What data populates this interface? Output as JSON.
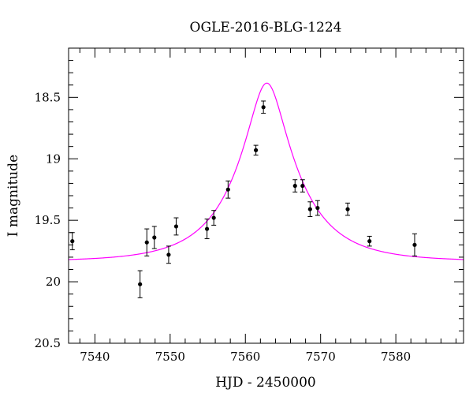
{
  "chart_data": {
    "type": "scatter",
    "title": "OGLE-2016-BLG-1224",
    "xlabel": "HJD - 2450000",
    "ylabel": "I magnitude",
    "xlim": [
      7536.5,
      7589
    ],
    "ylim": [
      20.5,
      18.1
    ],
    "y_inverted": true,
    "x_ticks": [
      7540,
      7550,
      7560,
      7570,
      7580
    ],
    "y_ticks": [
      18.5,
      19,
      19.5,
      20,
      20.5
    ],
    "y_tick_labels": [
      "18.5",
      "19",
      "19.5",
      "20",
      "20.5"
    ],
    "grid": false,
    "series": [
      {
        "kind": "points_with_errorbars",
        "color": "#000000",
        "points": [
          {
            "x": 7537.0,
            "y": 19.67,
            "err": 0.07
          },
          {
            "x": 7546.0,
            "y": 20.02,
            "err": 0.11
          },
          {
            "x": 7546.9,
            "y": 19.68,
            "err": 0.11
          },
          {
            "x": 7547.9,
            "y": 19.64,
            "err": 0.09
          },
          {
            "x": 7549.8,
            "y": 19.78,
            "err": 0.07
          },
          {
            "x": 7550.8,
            "y": 19.55,
            "err": 0.07
          },
          {
            "x": 7554.9,
            "y": 19.57,
            "err": 0.08
          },
          {
            "x": 7555.8,
            "y": 19.48,
            "err": 0.06
          },
          {
            "x": 7557.7,
            "y": 19.25,
            "err": 0.07
          },
          {
            "x": 7561.4,
            "y": 18.93,
            "err": 0.04
          },
          {
            "x": 7562.4,
            "y": 18.58,
            "err": 0.05
          },
          {
            "x": 7566.6,
            "y": 19.22,
            "err": 0.05
          },
          {
            "x": 7567.6,
            "y": 19.22,
            "err": 0.05
          },
          {
            "x": 7568.6,
            "y": 19.41,
            "err": 0.06
          },
          {
            "x": 7569.6,
            "y": 19.4,
            "err": 0.06
          },
          {
            "x": 7573.6,
            "y": 19.41,
            "err": 0.05
          },
          {
            "x": 7576.5,
            "y": 19.67,
            "err": 0.04
          },
          {
            "x": 7582.5,
            "y": 19.7,
            "err": 0.09
          }
        ]
      },
      {
        "kind": "model_curve",
        "color": "#ff00ff",
        "model": {
          "t0": 7562.85,
          "u0": 0.27,
          "tE": 8.4,
          "I_base": 19.835
        }
      }
    ]
  }
}
